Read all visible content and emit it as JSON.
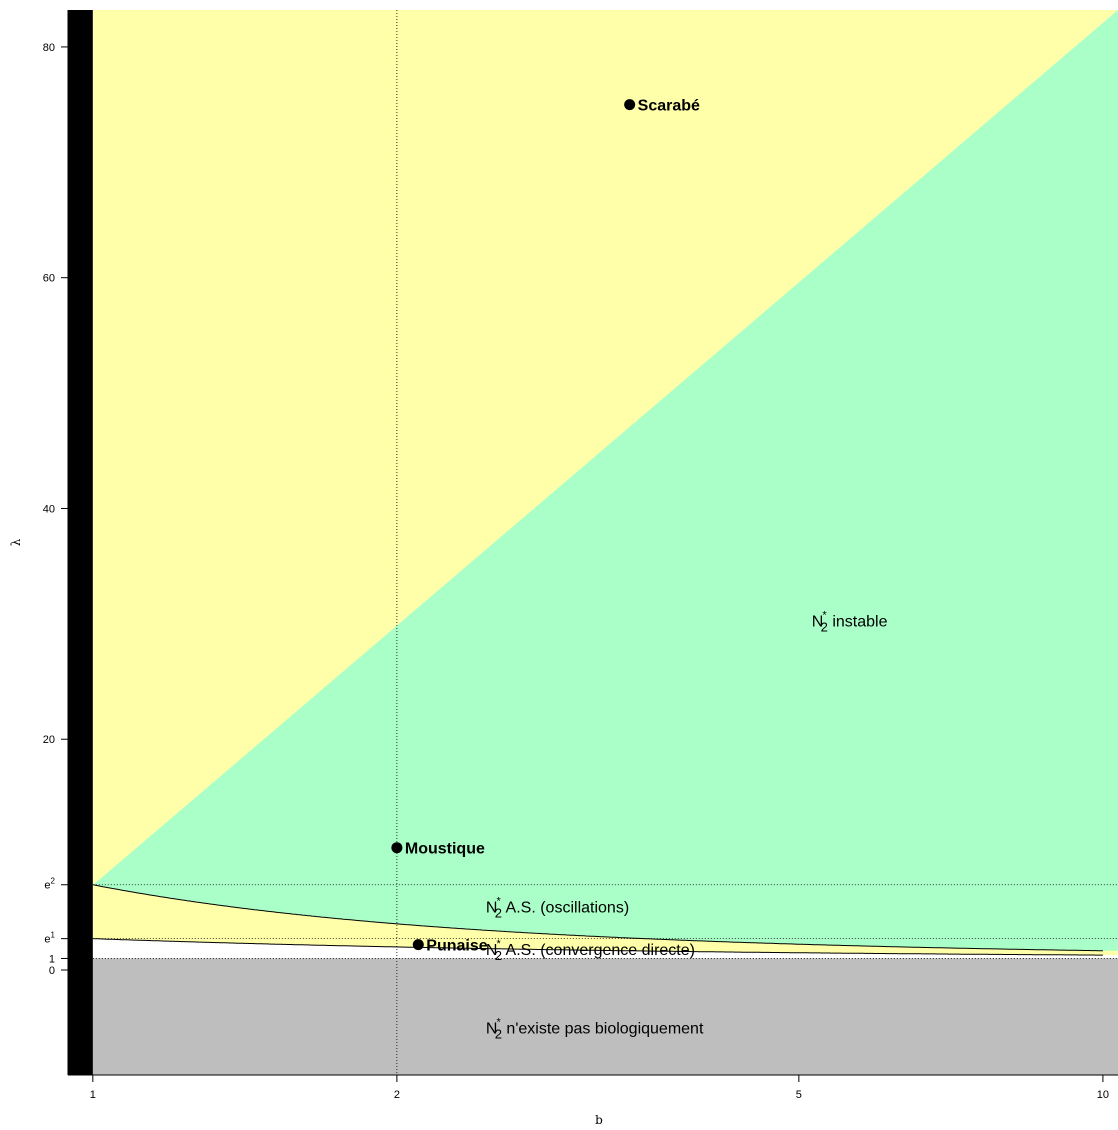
{
  "chart_data": {
    "type": "area",
    "title": "",
    "xlabel": "b",
    "ylabel": "λ",
    "x_scale": "log",
    "xlim": [
      0.945,
      10.35
    ],
    "ylim": [
      -9.1,
      83.2
    ],
    "x_ticks": [
      {
        "value": 1,
        "label": "1"
      },
      {
        "value": 2,
        "label": "2"
      },
      {
        "value": 5,
        "label": "5"
      },
      {
        "value": 10,
        "label": "10"
      }
    ],
    "y_ticks": [
      {
        "value": 0,
        "label": "0"
      },
      {
        "value": 1,
        "label": "1"
      },
      {
        "value": 2.718,
        "base": "e",
        "sup": "1"
      },
      {
        "value": 7.389,
        "base": "e",
        "sup": "2"
      },
      {
        "value": 20,
        "label": "20"
      },
      {
        "value": 40,
        "label": "40"
      },
      {
        "value": 60,
        "label": "60"
      },
      {
        "value": 80,
        "label": "80"
      }
    ],
    "reference_lines": {
      "horizontal": [
        1,
        2.718,
        7.389
      ],
      "vertical": [
        2
      ]
    },
    "regions": [
      {
        "name": "no-biological",
        "color": "#bebebe",
        "label_parts": [
          "N",
          "*",
          "2",
          " n'existe pas biologiquement"
        ],
        "label_at": [
          2.45,
          -5
        ]
      },
      {
        "name": "convergence",
        "color": "#ffffff",
        "label_parts": [
          "N",
          "*",
          "2",
          " A.S. (convergence directe)"
        ],
        "label_at": [
          2.45,
          1.8
        ]
      },
      {
        "name": "oscillations",
        "color": "#ffffaa",
        "label_parts": [
          "N",
          "*",
          "2",
          " A.S. (oscillations)"
        ],
        "label_at": [
          2.45,
          5.5
        ]
      },
      {
        "name": "unstable",
        "color": "#aaffc8",
        "label_parts": [
          "N",
          "*",
          "2",
          " instable"
        ],
        "label_at": [
          5.15,
          30.3
        ]
      }
    ],
    "colors": {
      "left_band": "#000000",
      "curve": "#000000"
    },
    "points": [
      {
        "name": "Scarabé",
        "x": 3.4,
        "y": 75
      },
      {
        "name": "Moustique",
        "x": 2.0,
        "y": 10.6
      },
      {
        "name": "Punaise",
        "x": 2.1,
        "y": 2.2
      }
    ]
  }
}
